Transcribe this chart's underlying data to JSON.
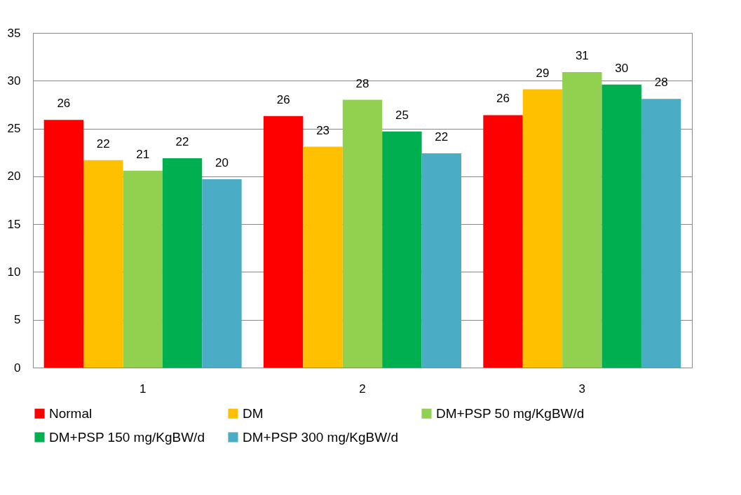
{
  "chart_data": {
    "type": "bar",
    "categories": [
      "1",
      "2",
      "3"
    ],
    "series": [
      {
        "name": "Normal",
        "color": "#ff0000",
        "values": [
          25.9,
          26.3,
          26.4
        ],
        "value_labels": [
          "26",
          "26",
          "26"
        ]
      },
      {
        "name": "DM",
        "color": "#ffc000",
        "values": [
          21.7,
          23.1,
          29.1
        ],
        "value_labels": [
          "22",
          "23",
          "29"
        ]
      },
      {
        "name": "DM+PSP 50 mg/KgBW/d",
        "color": "#92d050",
        "values": [
          20.6,
          28.0,
          30.9
        ],
        "value_labels": [
          "21",
          "28",
          "31"
        ]
      },
      {
        "name": "DM+PSP 150 mg/KgBW/d",
        "color": "#00b050",
        "values": [
          21.9,
          24.7,
          29.6
        ],
        "value_labels": [
          "22",
          "25",
          "30"
        ]
      },
      {
        "name": "DM+PSP 300 mg/KgBW/d",
        "color": "#4bacc6",
        "values": [
          19.7,
          22.4,
          28.1
        ],
        "value_labels": [
          "20",
          "22",
          "28"
        ]
      }
    ],
    "ylim": [
      0,
      35
    ],
    "yticks": [
      0,
      5,
      10,
      15,
      20,
      25,
      30,
      35
    ],
    "grid": true,
    "legend": "bottom"
  }
}
